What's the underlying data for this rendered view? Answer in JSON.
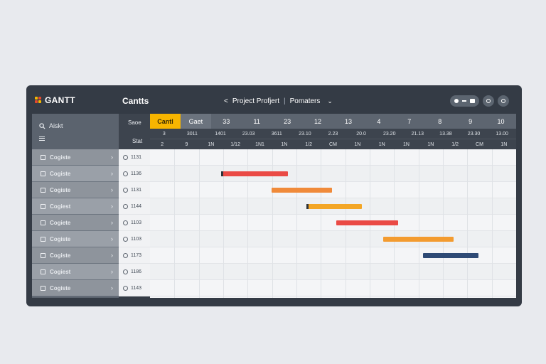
{
  "app": {
    "logo_text": "GANTT",
    "title": "Cantts",
    "breadcrumb": {
      "back": "<",
      "project": "Project Profjert",
      "separator": "|",
      "params": "Pomaters",
      "caret": "⌄"
    }
  },
  "sidebar": {
    "search_label": "Aiskt",
    "items": [
      {
        "label": "Cogiste"
      },
      {
        "label": "Cogiste"
      },
      {
        "label": "Cogiste"
      },
      {
        "label": "Cogiest"
      },
      {
        "label": "Cogiete"
      },
      {
        "label": "Cogiste"
      },
      {
        "label": "Cogiste"
      },
      {
        "label": "Cogiest"
      },
      {
        "label": "Cogiste"
      }
    ]
  },
  "id_column": {
    "header_top": "Saoe",
    "header_bottom": "Stat",
    "ids": [
      "1131",
      "1136",
      "1131",
      "1144",
      "1103",
      "1103",
      "1173",
      "1186",
      "1143"
    ]
  },
  "timeline": {
    "top": [
      "Cantl",
      "Gaet",
      "33",
      "11",
      "23",
      "12",
      "13",
      "4",
      "7",
      "8",
      "9",
      "10"
    ],
    "active_top_index": 0,
    "mid": [
      "3",
      "3011",
      "1401",
      "23.03",
      "3611",
      "23.10",
      "2.23",
      "20.0",
      "23.20",
      "21.13",
      "13.38",
      "23.30",
      "13.00"
    ],
    "bottom": [
      "2",
      "9",
      "1N",
      "1/12",
      "1N1",
      "1N",
      "1/2",
      "CM",
      "1N",
      "1N",
      "1N",
      "1N",
      "1/2",
      "CM",
      "1N"
    ]
  },
  "tasks": [
    {
      "row": 1,
      "start": 0.195,
      "end": 0.376,
      "color": "#ea4a45",
      "marker": true
    },
    {
      "row": 2,
      "start": 0.332,
      "end": 0.497,
      "color": "#f08a3a",
      "marker": false
    },
    {
      "row": 3,
      "start": 0.428,
      "end": 0.578,
      "color": "#f3a626",
      "marker": true
    },
    {
      "row": 4,
      "start": 0.508,
      "end": 0.678,
      "color": "#ea4a45",
      "marker": false
    },
    {
      "row": 5,
      "start": 0.636,
      "end": 0.83,
      "color": "#f39b2f",
      "marker": false
    },
    {
      "row": 6,
      "start": 0.746,
      "end": 0.897,
      "color": "#2e4a75",
      "marker": false
    }
  ],
  "colors": {
    "accent": "#f7b500",
    "window": "#343b45"
  }
}
